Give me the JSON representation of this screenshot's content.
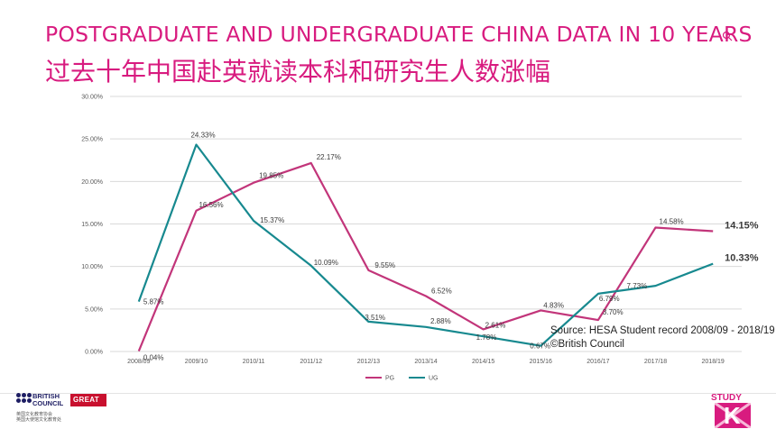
{
  "slide": {
    "title_en": "POSTGRADUATE AND UNDERGRADUATE CHINA DATA IN 10 YEARS",
    "title_zh": "过去十年中国赴英就读本科和研究生人数涨幅",
    "source_line1": "Source: HESA Student record 2008/09 - 2018/19",
    "source_line2": "©British Council"
  },
  "logos": {
    "british_council_line1": "BRITISH",
    "british_council_line2": "COUNCIL",
    "british_council_cn1": "英国文化教育协会",
    "british_council_cn2": "英国大使馆文化教育处",
    "great": "GREAT",
    "study": "STUDY",
    "uk": "UK"
  },
  "colors": {
    "accent": "#d81b7f",
    "pg": "#c2357a",
    "ug": "#17898f",
    "grid": "#d9d9d9",
    "axis_text": "#595959"
  },
  "chart_data": {
    "type": "line",
    "x": [
      "2008/09",
      "2009/10",
      "2010/11",
      "2011/12",
      "2012/13",
      "2013/14",
      "2014/15",
      "2015/16",
      "2016/17",
      "2017/18",
      "2018/19"
    ],
    "yticks": [
      "0.00%",
      "5.00%",
      "10.00%",
      "15.00%",
      "20.00%",
      "25.00%",
      "30.00%"
    ],
    "ylim": [
      0,
      30
    ],
    "grid": true,
    "legend_position": "bottom",
    "series": [
      {
        "name": "PG",
        "values": [
          0.04,
          16.56,
          19.85,
          22.17,
          9.55,
          6.52,
          2.61,
          4.83,
          3.7,
          14.58,
          14.15
        ],
        "labels": [
          "0.04%",
          "16.56%",
          "19.85%",
          "22.17%",
          "9.55%",
          "6.52%",
          "2.61%",
          "4.83%",
          "3.70%",
          "14.58%",
          "14.15%"
        ]
      },
      {
        "name": "UG",
        "values": [
          5.87,
          24.33,
          15.37,
          10.09,
          3.51,
          2.88,
          1.78,
          0.67,
          6.79,
          7.73,
          10.33
        ],
        "labels": [
          "5.87%",
          "24.33%",
          "15.37%",
          "10.09%",
          "3.51%",
          "2.88%",
          "1.78%",
          "0.67%",
          "6.79%",
          "7.73%",
          "10.33%"
        ]
      }
    ]
  }
}
